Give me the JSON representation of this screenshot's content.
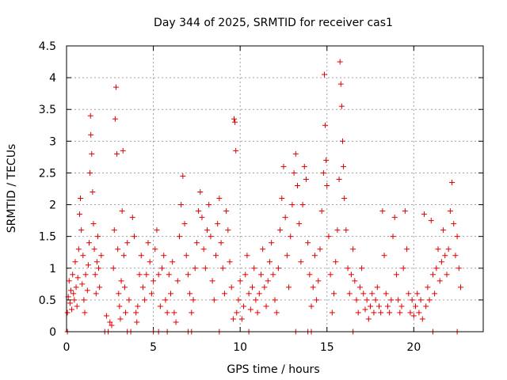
{
  "chart_data": {
    "type": "scatter",
    "title": "Day 344 of 2025, SRMTID for receiver cas1",
    "xlabel": "GPS time / hours",
    "ylabel": "SRMTID / TECUs",
    "xlim": [
      0,
      24
    ],
    "ylim": [
      0,
      4.5
    ],
    "grid": true,
    "marker": "plus",
    "x_ticks": [
      0,
      5,
      10,
      15,
      20
    ],
    "x_tick_labels": [
      "0",
      "5",
      "10",
      "15",
      "20"
    ],
    "y_ticks": [
      0,
      0.5,
      1,
      1.5,
      2,
      2.5,
      3,
      3.5,
      4,
      4.5
    ],
    "y_tick_labels": [
      "0",
      "0.5",
      "1",
      "1.5",
      "2",
      "2.5",
      "3",
      "3.5",
      "4",
      "4.5"
    ],
    "series": [
      {
        "name": "cas1",
        "color": "#e00000",
        "points": [
          [
            0.05,
            0.3
          ],
          [
            0.1,
            0.55
          ],
          [
            0.15,
            0.8
          ],
          [
            0.2,
            0.45
          ],
          [
            0.25,
            0.65
          ],
          [
            0.3,
            0.35
          ],
          [
            0.35,
            0.9
          ],
          [
            0.4,
            0.6
          ],
          [
            0.45,
            0.5
          ],
          [
            0.5,
            1.1
          ],
          [
            0.55,
            0.7
          ],
          [
            0.6,
            0.4
          ],
          [
            0.65,
            0.85
          ],
          [
            0.7,
            1.3
          ],
          [
            0.75,
            1.85
          ],
          [
            0.8,
            2.1
          ],
          [
            0.85,
            1.6
          ],
          [
            0.9,
            0.75
          ],
          [
            0.95,
            1.2
          ],
          [
            1.0,
            0.5
          ],
          [
            1.05,
            0.3
          ],
          [
            1.1,
            0.9
          ],
          [
            1.2,
            0.65
          ],
          [
            1.25,
            1.05
          ],
          [
            1.3,
            1.4
          ],
          [
            1.35,
            2.5
          ],
          [
            1.38,
            3.4
          ],
          [
            1.4,
            3.1
          ],
          [
            1.45,
            2.8
          ],
          [
            1.5,
            2.2
          ],
          [
            1.55,
            1.7
          ],
          [
            1.6,
            1.3
          ],
          [
            1.65,
            0.9
          ],
          [
            1.7,
            0.6
          ],
          [
            1.75,
            1.1
          ],
          [
            1.8,
            1.5
          ],
          [
            1.85,
            1.0
          ],
          [
            1.9,
            0.7
          ],
          [
            2.0,
            1.2
          ],
          [
            2.3,
            0.25
          ],
          [
            2.5,
            0.15
          ],
          [
            2.6,
            0.1
          ],
          [
            2.7,
            1.0
          ],
          [
            2.75,
            1.6
          ],
          [
            2.8,
            3.35
          ],
          [
            2.85,
            3.85
          ],
          [
            2.9,
            2.8
          ],
          [
            2.95,
            1.3
          ],
          [
            3.0,
            0.6
          ],
          [
            3.05,
            0.4
          ],
          [
            3.1,
            0.2
          ],
          [
            3.15,
            0.8
          ],
          [
            3.2,
            1.9
          ],
          [
            3.25,
            2.85
          ],
          [
            3.3,
            1.2
          ],
          [
            3.35,
            0.7
          ],
          [
            3.4,
            0.3
          ],
          [
            3.5,
            1.4
          ],
          [
            3.6,
            0.5
          ],
          [
            3.8,
            1.8
          ],
          [
            3.9,
            1.5
          ],
          [
            4.0,
            0.3
          ],
          [
            4.05,
            0.15
          ],
          [
            4.1,
            0.4
          ],
          [
            4.2,
            0.9
          ],
          [
            4.3,
            1.2
          ],
          [
            4.4,
            0.7
          ],
          [
            4.5,
            0.5
          ],
          [
            4.6,
            0.9
          ],
          [
            4.7,
            1.4
          ],
          [
            4.8,
            1.1
          ],
          [
            4.9,
            0.6
          ],
          [
            5.0,
            0.8
          ],
          [
            5.1,
            1.3
          ],
          [
            5.2,
            1.6
          ],
          [
            5.3,
            0.9
          ],
          [
            5.4,
            0.4
          ],
          [
            5.5,
            1.0
          ],
          [
            5.6,
            1.2
          ],
          [
            5.7,
            0.5
          ],
          [
            5.8,
            0.3
          ],
          [
            5.9,
            0.9
          ],
          [
            6.0,
            0.6
          ],
          [
            6.1,
            1.1
          ],
          [
            6.2,
            0.3
          ],
          [
            6.3,
            0.15
          ],
          [
            6.4,
            0.8
          ],
          [
            6.5,
            1.5
          ],
          [
            6.6,
            2.0
          ],
          [
            6.7,
            2.45
          ],
          [
            6.8,
            1.7
          ],
          [
            6.9,
            1.2
          ],
          [
            7.0,
            0.9
          ],
          [
            7.1,
            0.6
          ],
          [
            7.2,
            0.3
          ],
          [
            7.3,
            0.5
          ],
          [
            7.4,
            1.0
          ],
          [
            7.5,
            1.4
          ],
          [
            7.6,
            1.9
          ],
          [
            7.7,
            2.2
          ],
          [
            7.8,
            1.8
          ],
          [
            7.9,
            1.3
          ],
          [
            8.0,
            1.0
          ],
          [
            8.1,
            1.6
          ],
          [
            8.2,
            2.0
          ],
          [
            8.3,
            1.5
          ],
          [
            8.4,
            0.8
          ],
          [
            8.5,
            0.5
          ],
          [
            8.6,
            1.2
          ],
          [
            8.7,
            1.7
          ],
          [
            8.8,
            2.1
          ],
          [
            8.9,
            1.4
          ],
          [
            9.0,
            1.0
          ],
          [
            9.1,
            0.6
          ],
          [
            9.2,
            1.9
          ],
          [
            9.3,
            1.6
          ],
          [
            9.4,
            1.1
          ],
          [
            9.5,
            0.7
          ],
          [
            9.6,
            0.2
          ],
          [
            9.65,
            3.35
          ],
          [
            9.7,
            3.3
          ],
          [
            9.75,
            2.85
          ],
          [
            9.8,
            0.3
          ],
          [
            9.9,
            0.5
          ],
          [
            10.0,
            0.8
          ],
          [
            10.1,
            0.2
          ],
          [
            10.2,
            0.4
          ],
          [
            10.3,
            0.9
          ],
          [
            10.4,
            1.2
          ],
          [
            10.5,
            0.6
          ],
          [
            10.6,
            0.35
          ],
          [
            10.7,
            0.7
          ],
          [
            10.8,
            1.0
          ],
          [
            10.9,
            0.5
          ],
          [
            11.0,
            0.3
          ],
          [
            11.1,
            0.6
          ],
          [
            11.2,
            0.9
          ],
          [
            11.3,
            1.3
          ],
          [
            11.4,
            0.7
          ],
          [
            11.5,
            0.4
          ],
          [
            11.6,
            0.8
          ],
          [
            11.7,
            1.1
          ],
          [
            11.8,
            1.4
          ],
          [
            11.9,
            0.9
          ],
          [
            12.0,
            0.5
          ],
          [
            12.1,
            0.3
          ],
          [
            12.2,
            1.0
          ],
          [
            12.3,
            1.6
          ],
          [
            12.4,
            2.1
          ],
          [
            12.5,
            2.6
          ],
          [
            12.6,
            1.8
          ],
          [
            12.7,
            1.2
          ],
          [
            12.8,
            0.7
          ],
          [
            12.9,
            1.5
          ],
          [
            13.0,
            2.0
          ],
          [
            13.1,
            2.5
          ],
          [
            13.2,
            2.8
          ],
          [
            13.3,
            2.3
          ],
          [
            13.4,
            1.7
          ],
          [
            13.5,
            1.1
          ],
          [
            13.6,
            2.0
          ],
          [
            13.7,
            2.6
          ],
          [
            13.8,
            2.4
          ],
          [
            13.9,
            1.4
          ],
          [
            14.0,
            0.9
          ],
          [
            14.1,
            0.4
          ],
          [
            14.2,
            0.7
          ],
          [
            14.3,
            1.2
          ],
          [
            14.4,
            0.5
          ],
          [
            14.5,
            0.8
          ],
          [
            14.6,
            1.3
          ],
          [
            14.7,
            1.9
          ],
          [
            14.8,
            2.5
          ],
          [
            14.85,
            4.05
          ],
          [
            14.9,
            3.25
          ],
          [
            14.95,
            2.7
          ],
          [
            15.0,
            2.3
          ],
          [
            15.1,
            1.5
          ],
          [
            15.2,
            0.9
          ],
          [
            15.3,
            0.3
          ],
          [
            15.4,
            0.6
          ],
          [
            15.5,
            1.1
          ],
          [
            15.6,
            1.6
          ],
          [
            15.7,
            2.4
          ],
          [
            15.75,
            4.25
          ],
          [
            15.8,
            3.9
          ],
          [
            15.85,
            3.55
          ],
          [
            15.9,
            3.0
          ],
          [
            15.95,
            2.6
          ],
          [
            16.0,
            2.1
          ],
          [
            16.1,
            1.6
          ],
          [
            16.2,
            1.0
          ],
          [
            16.3,
            0.6
          ],
          [
            16.4,
            0.9
          ],
          [
            16.5,
            1.3
          ],
          [
            16.6,
            0.8
          ],
          [
            16.7,
            0.5
          ],
          [
            16.8,
            0.3
          ],
          [
            16.9,
            0.7
          ],
          [
            17.0,
            1.0
          ],
          [
            17.1,
            0.6
          ],
          [
            17.2,
            0.35
          ],
          [
            17.3,
            0.5
          ],
          [
            17.4,
            0.2
          ],
          [
            17.5,
            0.4
          ],
          [
            17.6,
            0.6
          ],
          [
            17.7,
            0.3
          ],
          [
            17.8,
            0.5
          ],
          [
            17.9,
            0.7
          ],
          [
            18.0,
            0.4
          ],
          [
            18.1,
            0.3
          ],
          [
            18.2,
            1.9
          ],
          [
            18.3,
            1.2
          ],
          [
            18.4,
            0.6
          ],
          [
            18.5,
            0.4
          ],
          [
            18.6,
            0.3
          ],
          [
            18.7,
            0.5
          ],
          [
            18.8,
            1.5
          ],
          [
            18.9,
            1.8
          ],
          [
            19.0,
            0.9
          ],
          [
            19.1,
            0.5
          ],
          [
            19.2,
            0.3
          ],
          [
            19.3,
            0.4
          ],
          [
            19.4,
            1.0
          ],
          [
            19.5,
            1.9
          ],
          [
            19.6,
            1.3
          ],
          [
            19.7,
            0.6
          ],
          [
            19.8,
            0.3
          ],
          [
            19.9,
            0.5
          ],
          [
            20.0,
            0.25
          ],
          [
            20.1,
            0.4
          ],
          [
            20.2,
            0.6
          ],
          [
            20.3,
            0.3
          ],
          [
            20.4,
            0.5
          ],
          [
            20.5,
            0.2
          ],
          [
            20.6,
            1.85
          ],
          [
            20.7,
            0.4
          ],
          [
            20.8,
            0.7
          ],
          [
            20.9,
            0.5
          ],
          [
            21.0,
            1.75
          ],
          [
            21.1,
            0.9
          ],
          [
            21.2,
            0.6
          ],
          [
            21.3,
            1.0
          ],
          [
            21.4,
            1.3
          ],
          [
            21.5,
            0.8
          ],
          [
            21.6,
            1.1
          ],
          [
            21.7,
            1.6
          ],
          [
            21.8,
            1.2
          ],
          [
            21.9,
            0.9
          ],
          [
            22.0,
            1.3
          ],
          [
            22.1,
            1.9
          ],
          [
            22.2,
            2.35
          ],
          [
            22.3,
            1.7
          ],
          [
            22.4,
            1.2
          ],
          [
            22.5,
            1.5
          ],
          [
            22.6,
            1.0
          ],
          [
            22.7,
            0.7
          ],
          [
            0.05,
            0.0
          ],
          [
            2.2,
            0.0
          ],
          [
            2.4,
            0.0
          ],
          [
            3.5,
            0.0
          ],
          [
            3.7,
            0.0
          ],
          [
            5.0,
            0.0
          ],
          [
            5.3,
            0.0
          ],
          [
            5.8,
            0.0
          ],
          [
            7.0,
            0.0
          ],
          [
            7.2,
            0.0
          ],
          [
            8.8,
            0.0
          ],
          [
            10.5,
            0.0
          ],
          [
            13.2,
            0.0
          ],
          [
            13.9,
            0.0
          ],
          [
            14.1,
            0.0
          ],
          [
            16.5,
            0.0
          ],
          [
            21.1,
            0.0
          ],
          [
            22.5,
            0.0
          ]
        ]
      }
    ]
  }
}
